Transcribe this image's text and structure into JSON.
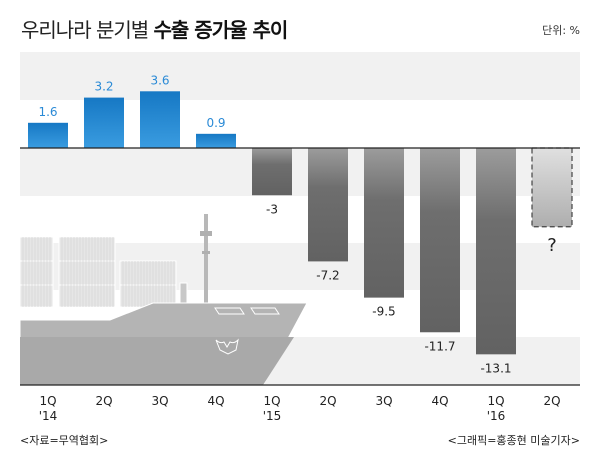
{
  "title": {
    "normal": "우리나라 분기별",
    "bold": "수출 증가율 추이"
  },
  "unit": "단위: %",
  "source": "<자료=무역협회>",
  "credit": "<그래픽=홍종현 미술기자>",
  "colors": {
    "positive": "#1e86d0",
    "positive_label": "#2a8ad6",
    "negative": "#6a6a6a",
    "projected": "#bdbdbd"
  },
  "chart_data": {
    "type": "bar",
    "title": "우리나라 분기별 수출 증가율 추이",
    "ylabel": "%",
    "ylim": [
      -15,
      6
    ],
    "categories": [
      "1Q '14",
      "2Q",
      "3Q",
      "4Q",
      "1Q '15",
      "2Q",
      "3Q",
      "4Q",
      "1Q '16",
      "2Q"
    ],
    "tick_labels": [
      {
        "q": "1Q",
        "year": "'14"
      },
      {
        "q": "2Q",
        "year": ""
      },
      {
        "q": "3Q",
        "year": ""
      },
      {
        "q": "4Q",
        "year": ""
      },
      {
        "q": "1Q",
        "year": "'15"
      },
      {
        "q": "2Q",
        "year": ""
      },
      {
        "q": "3Q",
        "year": ""
      },
      {
        "q": "4Q",
        "year": ""
      },
      {
        "q": "1Q",
        "year": "'16"
      },
      {
        "q": "2Q",
        "year": ""
      }
    ],
    "values": [
      1.6,
      3.2,
      3.6,
      0.9,
      -3,
      -7.2,
      -9.5,
      -11.7,
      -13.1,
      null
    ],
    "data_labels": [
      "1.6",
      "3.2",
      "3.6",
      "0.9",
      "-3",
      "-7.2",
      "-9.5",
      "-11.7",
      "-13.1",
      "?"
    ],
    "projected": {
      "index": 9,
      "estimated_value": -5,
      "label": "?"
    }
  }
}
